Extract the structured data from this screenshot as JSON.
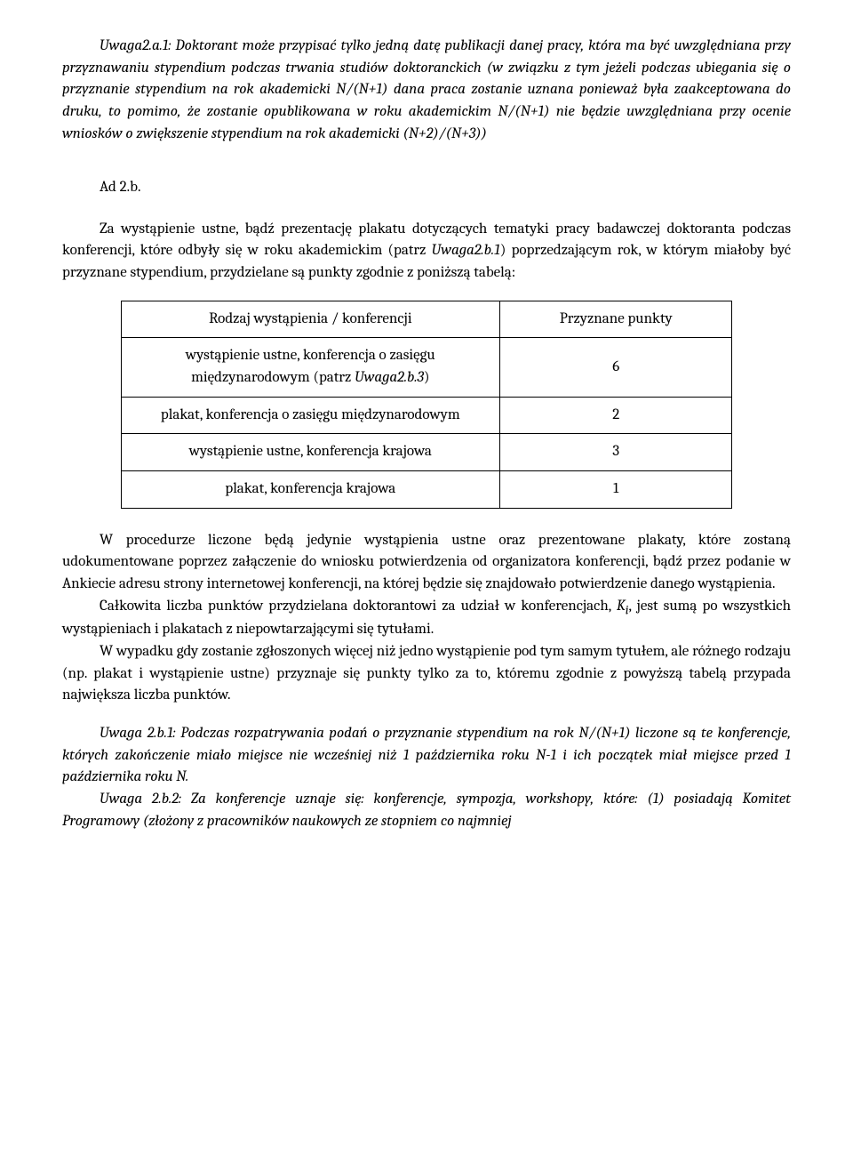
{
  "uwaga2a1": "Uwaga2.a.1: Doktorant może przypisać tylko jedną datę publikacji danej pracy, która ma być uwzględniana przy przyznawaniu stypendium podczas trwania studiów doktoranckich (w związku z tym jeżeli podczas ubiegania się o przyznanie stypendium na rok akademicki N/(N+1) dana praca zostanie uznana ponieważ była zaakceptowana do druku, to pomimo, że zostanie opublikowana w roku akademickim N/(N+1) nie będzie uwzględniana przy ocenie wniosków o zwiększenie stypendium na rok akademicki (N+2)/(N+3))",
  "ad2b_label": "Ad 2.b.",
  "para1_pre": "Za wystąpienie ustne, bądź prezentację plakatu dotyczących tematyki pracy badawczej doktoranta podczas konferencji, które odbyły się w roku akademickim (patrz ",
  "para1_em": "Uwaga2.b.1",
  "para1_post": ") poprzedzającym rok, w którym miałoby być przyznane stypendium, przydzielane są punkty zgodnie z poniższą tabelą:",
  "table": {
    "header": [
      "Rodzaj wystąpienia / konferencji",
      "Przyznane punkty"
    ],
    "rows": [
      {
        "left_pre": "wystąpienie ustne, konferencja o zasięgu międzynarodowym (patrz ",
        "left_em": "Uwaga2.b.3",
        "left_post": ")",
        "right": "6"
      },
      {
        "left": "plakat, konferencja o zasięgu międzynarodowym",
        "right": "2"
      },
      {
        "left": "wystąpienie ustne, konferencja krajowa",
        "right": "3"
      },
      {
        "left": "plakat, konferencja krajowa",
        "right": "1"
      }
    ]
  },
  "para2": "W procedurze liczone będą jedynie wystąpienia ustne oraz prezentowane plakaty, które zostaną udokumentowane poprzez załączenie do wniosku potwierdzenia od organizatora konferencji, bądź przez podanie w Ankiecie adresu strony internetowej konferencji, na której będzie się znajdowało potwierdzenie danego wystąpienia.",
  "para3_pre": "Całkowita liczba punktów przydzielana doktorantowi za udział w konferencjach, ",
  "para3_em": "K",
  "para3_sub": "i",
  "para3_post": ", jest sumą po wszystkich wystąpieniach i plakatach z niepowtarzającymi się tytułami.",
  "para4": "W wypadku gdy zostanie zgłoszonych więcej niż jedno wystąpienie pod tym samym tytułem, ale różnego rodzaju (np. plakat i wystąpienie ustne) przyznaje się punkty tylko za to, któremu zgodnie z powyższą tabelą przypada największa liczba punktów.",
  "uwaga2b1": "Uwaga 2.b.1: Podczas rozpatrywania podań o przyznanie stypendium na rok N/(N+1) liczone są te konferencje, których zakończenie miało miejsce nie wcześniej niż 1 października roku N-1 i ich początek miał miejsce przed 1 października roku N.",
  "uwaga2b2": "Uwaga 2.b.2: Za konferencje uznaje się: konferencje, sympozja, workshopy, które: (1) posiadają Komitet Programowy (złożony z pracowników naukowych ze stopniem co najmniej"
}
